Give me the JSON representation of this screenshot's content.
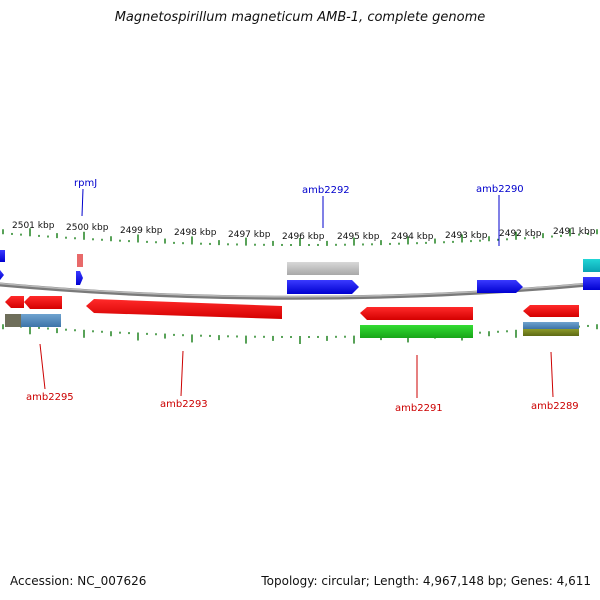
{
  "title": "Magnetospirillum magneticum AMB-1, complete genome",
  "accession_label": "Accession: NC_007626",
  "summary_label": "Topology: circular; Length: 4,967,148 bp; Genes: 4,611",
  "kbp_labels": [
    "2501 kbp",
    "2500 kbp",
    "2499 kbp",
    "2498 kbp",
    "2497 kbp",
    "2496 kbp",
    "2495 kbp",
    "2494 kbp",
    "2493 kbp",
    "2492 kbp",
    "2491 kbp"
  ],
  "gene_labels_top": [
    "rpmJ",
    "amb2292",
    "amb2290"
  ],
  "gene_labels_bottom": [
    "amb2295",
    "amb2293",
    "amb2291",
    "amb2289"
  ],
  "colors": {
    "forward": "#0000ff",
    "reverse": "#ff0000",
    "backbone": "#808080",
    "ticks": "#2e8b2e",
    "label_blue": "#0000cc",
    "label_red": "#cc0000"
  }
}
